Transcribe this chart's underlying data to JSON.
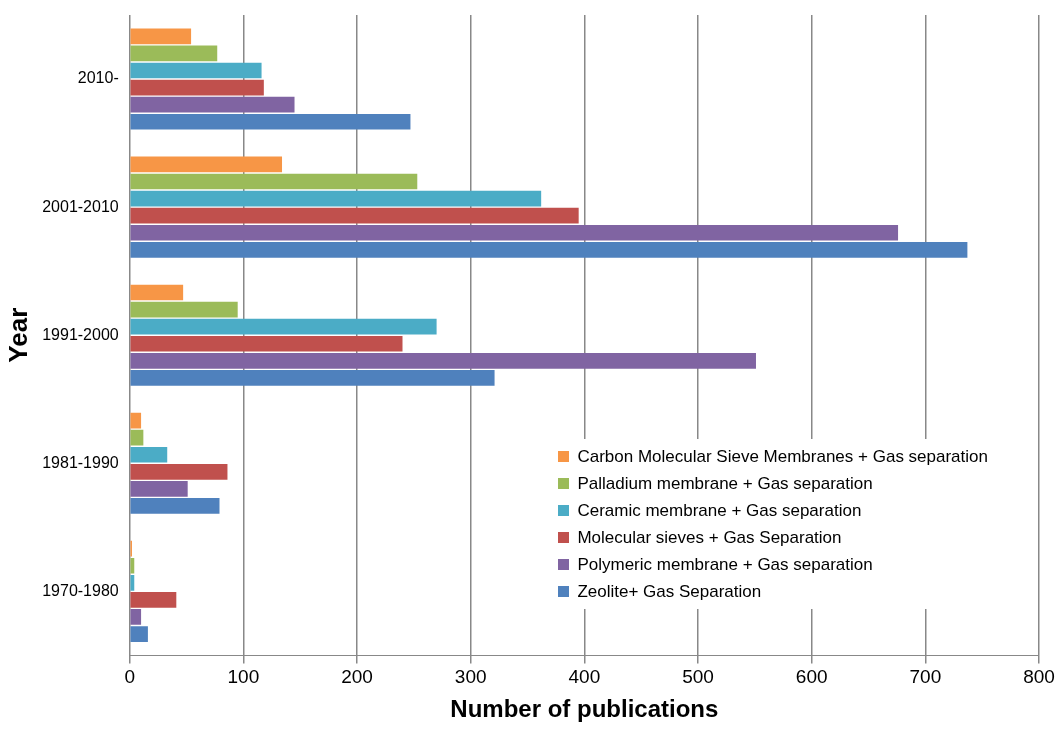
{
  "chart_data": {
    "type": "bar",
    "orientation": "horizontal",
    "xlabel": "Number of publications",
    "ylabel": "Year",
    "categories": [
      "2010-",
      "2001-2010",
      "1991-2000",
      "1981-1990",
      "1970-1980"
    ],
    "series": [
      {
        "name": "Carbon Molecular Sieve Membranes + Gas separation",
        "color": "#f79646",
        "values": [
          54,
          134,
          47,
          10,
          2
        ]
      },
      {
        "name": "Palladium membrane + Gas separation",
        "color": "#9bbb59",
        "values": [
          77,
          253,
          95,
          12,
          4
        ]
      },
      {
        "name": "Ceramic membrane + Gas separation",
        "color": "#4bacc6",
        "values": [
          116,
          362,
          270,
          33,
          4
        ]
      },
      {
        "name": "Molecular sieves +  Gas Separation",
        "color": "#c0504d",
        "values": [
          118,
          395,
          240,
          86,
          41
        ]
      },
      {
        "name": "Polymeric membrane + Gas separation",
        "color": "#8064a2",
        "values": [
          145,
          676,
          551,
          51,
          10
        ]
      },
      {
        "name": "Zeolite+ Gas Separation",
        "color": "#4f81bd",
        "values": [
          247,
          737,
          321,
          79,
          16
        ]
      }
    ],
    "xlim": [
      0,
      800
    ],
    "xticks": [
      0,
      100,
      200,
      300,
      400,
      500,
      600,
      700,
      800
    ],
    "grid": "x",
    "legend": "bottom right"
  }
}
